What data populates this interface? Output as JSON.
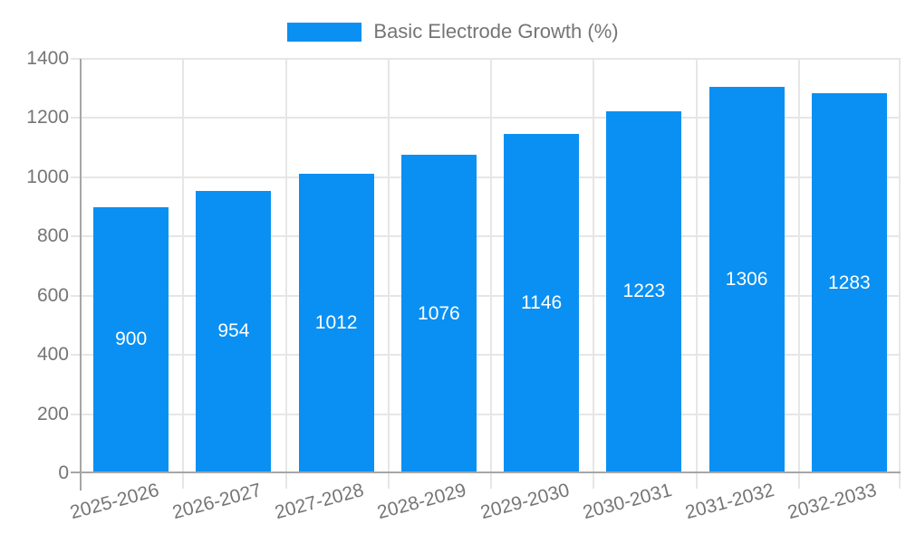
{
  "legend": {
    "label": "Basic Electrode Growth (%)"
  },
  "colors": {
    "bar": "#0a90f2",
    "axis": "#a6a6a6",
    "grid": "#e6e6e6",
    "tick_label": "#757575",
    "value_label": "#ffffff",
    "background": "#ffffff"
  },
  "chart_data": {
    "type": "bar",
    "title": "Basic Electrode Growth (%)",
    "categories": [
      "2025-2026",
      "2026-2027",
      "2027-2028",
      "2028-2029",
      "2029-2030",
      "2030-2031",
      "2031-2032",
      "2032-2033"
    ],
    "values": [
      900,
      954,
      1012,
      1076,
      1146,
      1223,
      1306,
      1283
    ],
    "xlabel": "",
    "ylabel": "",
    "ylim": [
      0,
      1400
    ],
    "yticks": [
      0,
      200,
      400,
      600,
      800,
      1000,
      1200,
      1400
    ],
    "grid": true,
    "legend_position": "top",
    "bar_value_labels": true,
    "x_tick_rotation_deg": -15
  }
}
